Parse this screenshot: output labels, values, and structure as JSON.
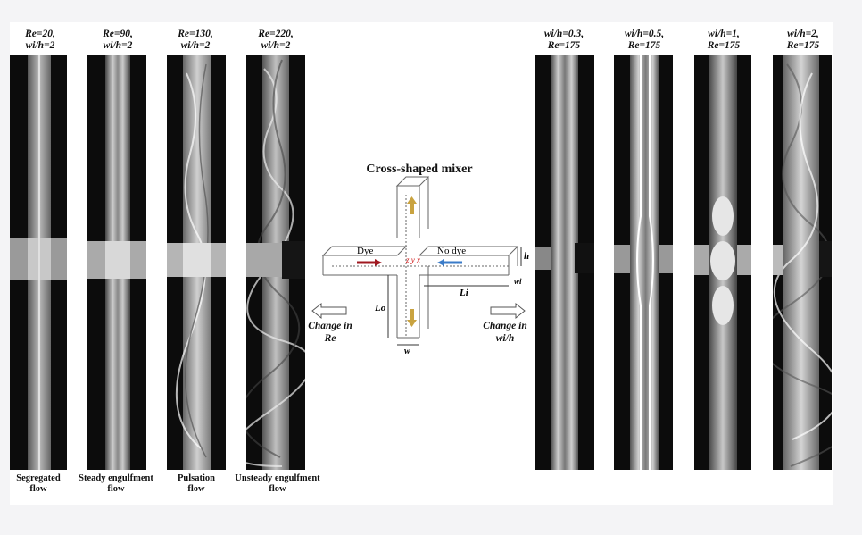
{
  "panels_left": [
    {
      "title_line1": "Re=20,",
      "title_line2": "wi/h=2",
      "label_line1": "Segregated",
      "label_line2": "flow"
    },
    {
      "title_line1": "Re=90,",
      "title_line2": "wi/h=2",
      "label_line1": "Steady engulfment",
      "label_line2": "flow"
    },
    {
      "title_line1": "Re=130,",
      "title_line2": "wi/h=2",
      "label_line1": "Pulsation",
      "label_line2": "flow"
    },
    {
      "title_line1": "Re=220,",
      "title_line2": "wi/h=2",
      "label_line1": "Unsteady engulfment",
      "label_line2": "flow"
    }
  ],
  "panels_right": [
    {
      "title_line1": "wi/h=0.3,",
      "title_line2": "Re=175"
    },
    {
      "title_line1": "wi/h=0.5,",
      "title_line2": "Re=175"
    },
    {
      "title_line1": "wi/h=1,",
      "title_line2": "Re=175"
    },
    {
      "title_line1": "wi/h=2,",
      "title_line2": "Re=175"
    }
  ],
  "mixer": {
    "title": "Cross-shaped mixer",
    "dye_label": "Dye",
    "no_dye_label": "No dye",
    "label_h": "h",
    "label_wi": "wi",
    "label_li": "Li",
    "label_lo": "Lo",
    "label_w": "w",
    "label_axes": "z y x",
    "change_re_line1": "Change in",
    "change_re_line2": "Re",
    "change_wh_line1": "Change in",
    "change_wh_line2": "wi/h"
  },
  "colors": {
    "dye_arrow": "#a01820",
    "nodye_arrow": "#3a7bc8",
    "axes": "#d01818"
  }
}
